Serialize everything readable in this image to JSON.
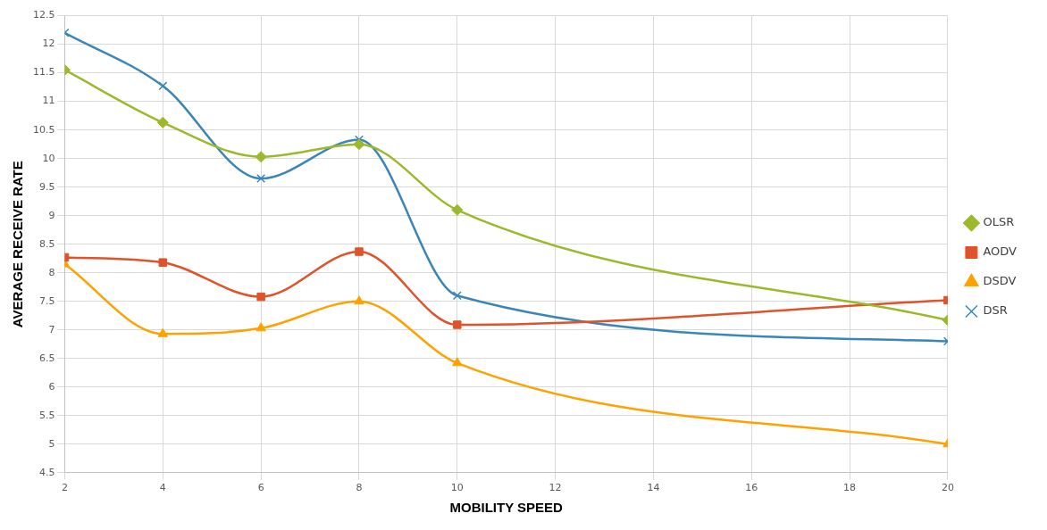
{
  "chart_data": {
    "type": "line",
    "xlabel": "MOBILITY SPEED",
    "ylabel": "AVERAGE RECEIVE RATE",
    "x": [
      2,
      4,
      6,
      8,
      10,
      20
    ],
    "xlim": [
      2,
      20
    ],
    "xticks": [
      2,
      4,
      6,
      8,
      10,
      12,
      14,
      16,
      18,
      20
    ],
    "ylim": [
      4.5,
      12.5
    ],
    "yticks": [
      4.5,
      5,
      5.5,
      6,
      6.5,
      7,
      7.5,
      8,
      8.5,
      9,
      9.5,
      10,
      10.5,
      11,
      11.5,
      12,
      12.5
    ],
    "grid": true,
    "legend": "right",
    "series": [
      {
        "name": "OLSR",
        "color": "#9cb92c",
        "marker": "diamond",
        "values": [
          11.55,
          10.63,
          10.03,
          10.25,
          9.1,
          7.17
        ]
      },
      {
        "name": "AODV",
        "color": "#e0522a",
        "marker": "square",
        "values": [
          8.27,
          8.18,
          7.58,
          8.37,
          7.09,
          7.52
        ]
      },
      {
        "name": "DSDV",
        "color": "#ffa200",
        "marker": "triangle",
        "values": [
          8.15,
          6.93,
          7.03,
          7.5,
          6.42,
          5.0
        ]
      },
      {
        "name": "DSR",
        "color": "#3a86b8",
        "marker": "cross",
        "values": [
          12.2,
          11.27,
          9.65,
          10.33,
          7.6,
          6.8
        ]
      }
    ]
  }
}
